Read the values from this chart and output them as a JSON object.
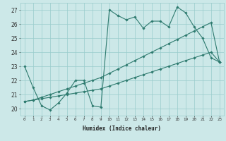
{
  "title": "",
  "xlabel": "Humidex (Indice chaleur)",
  "ylabel": "",
  "background_color": "#cce8e8",
  "grid_color": "#99cccc",
  "line_color": "#2d7a6e",
  "xlim": [
    -0.5,
    23.5
  ],
  "ylim": [
    19.5,
    27.5
  ],
  "yticks": [
    20,
    21,
    22,
    23,
    24,
    25,
    26,
    27
  ],
  "xticks": [
    0,
    1,
    2,
    3,
    4,
    5,
    6,
    7,
    8,
    9,
    10,
    11,
    12,
    13,
    14,
    15,
    16,
    17,
    18,
    19,
    20,
    21,
    22,
    23
  ],
  "series": [
    {
      "x": [
        0,
        1,
        2,
        3,
        4,
        5,
        6,
        7,
        8,
        9,
        10,
        11,
        12,
        13,
        14,
        15,
        16,
        17,
        18,
        19,
        20,
        21,
        22,
        23
      ],
      "y": [
        23.0,
        21.5,
        20.2,
        19.9,
        20.4,
        21.1,
        22.0,
        22.0,
        20.2,
        20.1,
        27.0,
        26.6,
        26.3,
        26.5,
        25.7,
        26.2,
        26.2,
        25.8,
        27.2,
        26.8,
        25.8,
        25.0,
        23.6,
        23.3
      ]
    },
    {
      "x": [
        0,
        1,
        2,
        3,
        4,
        5,
        6,
        7,
        8,
        9,
        10,
        11,
        12,
        13,
        14,
        15,
        16,
        17,
        18,
        19,
        20,
        21,
        22,
        23
      ],
      "y": [
        20.5,
        20.6,
        20.7,
        20.8,
        20.9,
        21.0,
        21.1,
        21.2,
        21.3,
        21.4,
        21.6,
        21.8,
        22.0,
        22.2,
        22.4,
        22.6,
        22.8,
        23.0,
        23.2,
        23.4,
        23.6,
        23.8,
        24.0,
        23.3
      ]
    },
    {
      "x": [
        0,
        1,
        2,
        3,
        4,
        5,
        6,
        7,
        8,
        9,
        10,
        11,
        12,
        13,
        14,
        15,
        16,
        17,
        18,
        19,
        20,
        21,
        22,
        23
      ],
      "y": [
        20.5,
        20.6,
        20.8,
        21.0,
        21.2,
        21.4,
        21.6,
        21.8,
        22.0,
        22.2,
        22.5,
        22.8,
        23.1,
        23.4,
        23.7,
        24.0,
        24.3,
        24.6,
        24.9,
        25.2,
        25.5,
        25.8,
        26.1,
        23.3
      ]
    }
  ]
}
